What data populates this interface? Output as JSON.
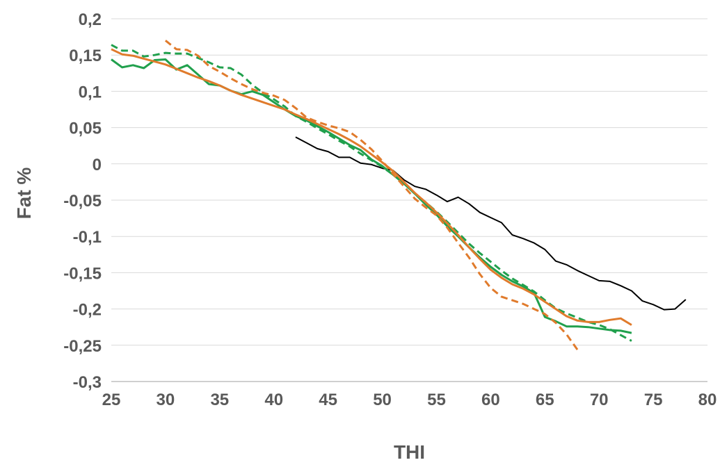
{
  "chart_data": {
    "type": "line",
    "title": "",
    "xlabel": "THI",
    "ylabel": "Fat %",
    "xlim": [
      25,
      80
    ],
    "ylim": [
      -0.3,
      0.2
    ],
    "x_ticks": [
      25,
      30,
      35,
      40,
      45,
      50,
      55,
      60,
      65,
      70,
      75,
      80
    ],
    "x_tick_labels": [
      "25",
      "30",
      "35",
      "40",
      "45",
      "50",
      "55",
      "60",
      "65",
      "70",
      "75",
      "80"
    ],
    "y_ticks": [
      0.2,
      0.15,
      0.1,
      0.05,
      0,
      -0.05,
      -0.1,
      -0.15,
      -0.2,
      -0.25,
      -0.3
    ],
    "y_tick_labels": [
      "0,2",
      "0,15",
      "0,1",
      "0,05",
      "0",
      "-0,05",
      "-0,1",
      "-0,15",
      "-0,2",
      "-0,25",
      "-0,3"
    ],
    "grid": "horizontal",
    "legend": "none",
    "series": [
      {
        "color": "#000000",
        "style": "solid",
        "points": [
          [
            42,
            0.037
          ],
          [
            43,
            0.029
          ],
          [
            44,
            0.021
          ],
          [
            45,
            0.017
          ],
          [
            46,
            0.009
          ],
          [
            47,
            0.009
          ],
          [
            48,
            0.001
          ],
          [
            49,
            -0.001
          ],
          [
            50,
            -0.006
          ],
          [
            51,
            -0.009
          ],
          [
            52,
            -0.022
          ],
          [
            53,
            -0.031
          ],
          [
            54,
            -0.035
          ],
          [
            55,
            -0.043
          ],
          [
            56,
            -0.052
          ],
          [
            57,
            -0.046
          ],
          [
            58,
            -0.055
          ],
          [
            59,
            -0.067
          ],
          [
            60,
            -0.074
          ],
          [
            61,
            -0.081
          ],
          [
            62,
            -0.098
          ],
          [
            63,
            -0.103
          ],
          [
            64,
            -0.109
          ],
          [
            65,
            -0.118
          ],
          [
            66,
            -0.134
          ],
          [
            67,
            -0.139
          ],
          [
            68,
            -0.147
          ],
          [
            69,
            -0.154
          ],
          [
            70,
            -0.161
          ],
          [
            71,
            -0.162
          ],
          [
            72,
            -0.168
          ],
          [
            73,
            -0.175
          ],
          [
            74,
            -0.189
          ],
          [
            75,
            -0.194
          ],
          [
            76,
            -0.201
          ],
          [
            77,
            -0.2
          ],
          [
            78,
            -0.187
          ]
        ]
      },
      {
        "color": "#21a04d",
        "style": "solid",
        "points": [
          [
            25,
            0.144
          ],
          [
            26,
            0.133
          ],
          [
            27,
            0.136
          ],
          [
            28,
            0.132
          ],
          [
            29,
            0.143
          ],
          [
            30,
            0.144
          ],
          [
            31,
            0.13
          ],
          [
            32,
            0.136
          ],
          [
            33,
            0.123
          ],
          [
            34,
            0.11
          ],
          [
            35,
            0.108
          ],
          [
            36,
            0.101
          ],
          [
            37,
            0.096
          ],
          [
            38,
            0.1
          ],
          [
            39,
            0.095
          ],
          [
            40,
            0.085
          ],
          [
            41,
            0.075
          ],
          [
            42,
            0.066
          ],
          [
            43,
            0.06
          ],
          [
            44,
            0.052
          ],
          [
            45,
            0.044
          ],
          [
            46,
            0.035
          ],
          [
            47,
            0.026
          ],
          [
            48,
            0.019
          ],
          [
            49,
            0.006
          ],
          [
            50,
            -0.003
          ],
          [
            51,
            -0.015
          ],
          [
            52,
            -0.027
          ],
          [
            53,
            -0.041
          ],
          [
            54,
            -0.056
          ],
          [
            55,
            -0.07
          ],
          [
            56,
            -0.086
          ],
          [
            57,
            -0.1
          ],
          [
            58,
            -0.115
          ],
          [
            59,
            -0.129
          ],
          [
            60,
            -0.142
          ],
          [
            61,
            -0.153
          ],
          [
            62,
            -0.162
          ],
          [
            63,
            -0.169
          ],
          [
            64,
            -0.178
          ],
          [
            65,
            -0.211
          ],
          [
            66,
            -0.217
          ],
          [
            67,
            -0.224
          ],
          [
            68,
            -0.224
          ],
          [
            69,
            -0.225
          ],
          [
            70,
            -0.227
          ],
          [
            71,
            -0.229
          ],
          [
            72,
            -0.23
          ],
          [
            73,
            -0.233
          ]
        ]
      },
      {
        "color": "#21a04d",
        "style": "dashed",
        "points": [
          [
            25,
            0.164
          ],
          [
            26,
            0.156
          ],
          [
            27,
            0.156
          ],
          [
            28,
            0.148
          ],
          [
            29,
            0.15
          ],
          [
            30,
            0.153
          ],
          [
            31,
            0.152
          ],
          [
            32,
            0.152
          ],
          [
            33,
            0.146
          ],
          [
            34,
            0.14
          ],
          [
            35,
            0.133
          ],
          [
            36,
            0.132
          ],
          [
            37,
            0.123
          ],
          [
            38,
            0.109
          ],
          [
            39,
            0.098
          ],
          [
            40,
            0.089
          ],
          [
            41,
            0.079
          ],
          [
            42,
            0.066
          ],
          [
            43,
            0.058
          ],
          [
            44,
            0.049
          ],
          [
            45,
            0.041
          ],
          [
            46,
            0.032
          ],
          [
            47,
            0.024
          ],
          [
            48,
            0.014
          ],
          [
            49,
            0.005
          ],
          [
            50,
            -0.004
          ],
          [
            51,
            -0.015
          ],
          [
            52,
            -0.027
          ],
          [
            53,
            -0.041
          ],
          [
            54,
            -0.053
          ],
          [
            55,
            -0.066
          ],
          [
            56,
            -0.08
          ],
          [
            57,
            -0.095
          ],
          [
            58,
            -0.11
          ],
          [
            59,
            -0.123
          ],
          [
            60,
            -0.135
          ],
          [
            61,
            -0.147
          ],
          [
            62,
            -0.158
          ],
          [
            63,
            -0.167
          ],
          [
            64,
            -0.176
          ],
          [
            65,
            -0.188
          ],
          [
            66,
            -0.199
          ],
          [
            67,
            -0.206
          ],
          [
            68,
            -0.212
          ],
          [
            69,
            -0.218
          ],
          [
            70,
            -0.222
          ],
          [
            71,
            -0.228
          ],
          [
            72,
            -0.236
          ],
          [
            73,
            -0.244
          ]
        ]
      },
      {
        "color": "#e07b2c",
        "style": "solid",
        "points": [
          [
            25,
            0.158
          ],
          [
            26,
            0.151
          ],
          [
            27,
            0.149
          ],
          [
            28,
            0.145
          ],
          [
            29,
            0.141
          ],
          [
            30,
            0.137
          ],
          [
            31,
            0.131
          ],
          [
            32,
            0.125
          ],
          [
            33,
            0.119
          ],
          [
            34,
            0.114
          ],
          [
            35,
            0.108
          ],
          [
            36,
            0.101
          ],
          [
            37,
            0.095
          ],
          [
            38,
            0.09
          ],
          [
            39,
            0.085
          ],
          [
            40,
            0.08
          ],
          [
            41,
            0.075
          ],
          [
            42,
            0.068
          ],
          [
            43,
            0.062
          ],
          [
            44,
            0.055
          ],
          [
            45,
            0.048
          ],
          [
            46,
            0.041
          ],
          [
            47,
            0.033
          ],
          [
            48,
            0.024
          ],
          [
            49,
            0.013
          ],
          [
            50,
            0.002
          ],
          [
            51,
            -0.01
          ],
          [
            52,
            -0.025
          ],
          [
            53,
            -0.04
          ],
          [
            54,
            -0.053
          ],
          [
            55,
            -0.067
          ],
          [
            56,
            -0.082
          ],
          [
            57,
            -0.098
          ],
          [
            58,
            -0.115
          ],
          [
            59,
            -0.131
          ],
          [
            60,
            -0.146
          ],
          [
            61,
            -0.157
          ],
          [
            62,
            -0.166
          ],
          [
            63,
            -0.172
          ],
          [
            64,
            -0.18
          ],
          [
            65,
            -0.19
          ],
          [
            66,
            -0.2
          ],
          [
            67,
            -0.21
          ],
          [
            68,
            -0.216
          ],
          [
            69,
            -0.218
          ],
          [
            70,
            -0.218
          ],
          [
            71,
            -0.215
          ],
          [
            72,
            -0.213
          ],
          [
            73,
            -0.222
          ]
        ]
      },
      {
        "color": "#e07b2c",
        "style": "dashed",
        "points": [
          [
            30,
            0.17
          ],
          [
            31,
            0.158
          ],
          [
            32,
            0.157
          ],
          [
            33,
            0.149
          ],
          [
            34,
            0.135
          ],
          [
            35,
            0.127
          ],
          [
            36,
            0.118
          ],
          [
            37,
            0.11
          ],
          [
            38,
            0.103
          ],
          [
            39,
            0.098
          ],
          [
            40,
            0.094
          ],
          [
            41,
            0.088
          ],
          [
            42,
            0.077
          ],
          [
            43,
            0.064
          ],
          [
            44,
            0.058
          ],
          [
            45,
            0.053
          ],
          [
            46,
            0.049
          ],
          [
            47,
            0.044
          ],
          [
            48,
            0.033
          ],
          [
            49,
            0.02
          ],
          [
            50,
            0.004
          ],
          [
            51,
            -0.014
          ],
          [
            52,
            -0.031
          ],
          [
            53,
            -0.048
          ],
          [
            54,
            -0.06
          ],
          [
            55,
            -0.071
          ],
          [
            56,
            -0.088
          ],
          [
            57,
            -0.109
          ],
          [
            58,
            -0.129
          ],
          [
            59,
            -0.152
          ],
          [
            60,
            -0.171
          ],
          [
            61,
            -0.183
          ],
          [
            62,
            -0.188
          ],
          [
            63,
            -0.193
          ],
          [
            64,
            -0.2
          ],
          [
            65,
            -0.207
          ],
          [
            66,
            -0.219
          ],
          [
            67,
            -0.235
          ],
          [
            68,
            -0.256
          ]
        ]
      }
    ]
  }
}
